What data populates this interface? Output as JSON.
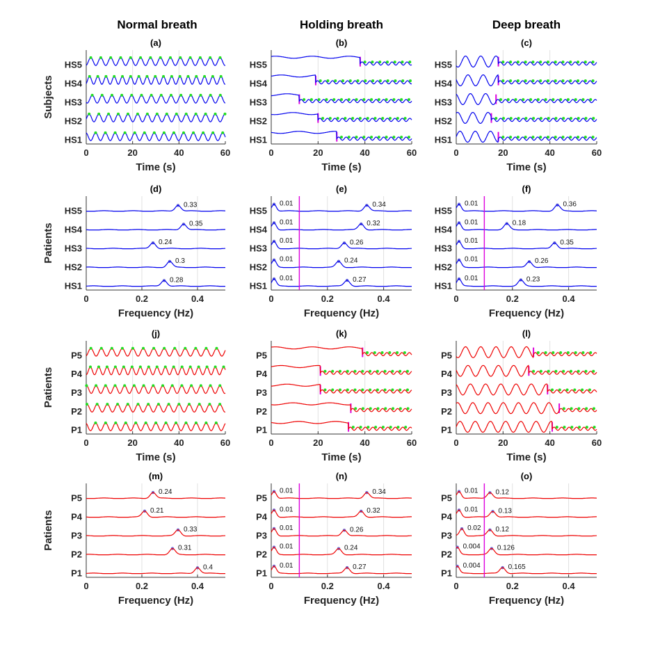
{
  "column_titles": [
    "Normal breath",
    "Holding breath",
    "Deep breath"
  ],
  "chart_data": [
    {
      "id": "a",
      "type": "line",
      "label": "(a)",
      "ylabel": "Subjects",
      "xlabel": "Time (s)",
      "xlim": [
        0,
        60
      ],
      "xticks": [
        0,
        20,
        40,
        60
      ],
      "rows": [
        "HS1",
        "HS2",
        "HS3",
        "HS4",
        "HS5"
      ],
      "color": "#0000ee",
      "grid": true,
      "condition": "normal"
    },
    {
      "id": "b",
      "type": "line",
      "label": "(b)",
      "ylabel": "",
      "xlabel": "Time (s)",
      "xlim": [
        0,
        60
      ],
      "xticks": [
        0,
        20,
        40,
        60
      ],
      "rows": [
        "HS1",
        "HS2",
        "HS3",
        "HS4",
        "HS5"
      ],
      "color": "#0000ee",
      "grid": true,
      "condition": "holding",
      "onsets": [
        28,
        20,
        12,
        19,
        38
      ]
    },
    {
      "id": "c",
      "type": "line",
      "label": "(c)",
      "ylabel": "",
      "xlabel": "Time (s)",
      "xlim": [
        0,
        60
      ],
      "xticks": [
        0,
        20,
        40,
        60
      ],
      "rows": [
        "HS1",
        "HS2",
        "HS3",
        "HS4",
        "HS5"
      ],
      "color": "#0000ee",
      "grid": true,
      "condition": "deep",
      "onsets": [
        18,
        15,
        17,
        18,
        18
      ]
    },
    {
      "id": "d",
      "type": "line",
      "label": "(d)",
      "ylabel": "Patients",
      "xlabel": "Frequency (Hz)",
      "xlim": [
        0,
        0.5
      ],
      "xticks": [
        0,
        0.2,
        0.4
      ],
      "rows": [
        "HS1",
        "HS2",
        "HS3",
        "HS4",
        "HS5"
      ],
      "color": "#0000ee",
      "grid": true,
      "condition": "spectrum",
      "peaks": [
        [
          0.28
        ],
        [
          0.3
        ],
        [
          0.24
        ],
        [
          0.35
        ],
        [
          0.33
        ]
      ],
      "peak_labels": [
        [
          "0.28"
        ],
        [
          "0.3"
        ],
        [
          "0.24"
        ],
        [
          "0.35"
        ],
        [
          "0.33"
        ]
      ]
    },
    {
      "id": "e",
      "type": "line",
      "label": "(e)",
      "ylabel": "",
      "xlabel": "Frequency (Hz)",
      "xlim": [
        0,
        0.5
      ],
      "xticks": [
        0,
        0.2,
        0.4
      ],
      "rows": [
        "HS1",
        "HS2",
        "HS3",
        "HS4",
        "HS5"
      ],
      "color": "#0000ee",
      "grid": true,
      "condition": "spectrum",
      "vline": 0.1,
      "peaks": [
        [
          0.01,
          0.27
        ],
        [
          0.01,
          0.24
        ],
        [
          0.01,
          0.26
        ],
        [
          0.01,
          0.32
        ],
        [
          0.01,
          0.34
        ]
      ],
      "peak_labels": [
        [
          "0.01",
          "0.27"
        ],
        [
          "0.01",
          "0.24"
        ],
        [
          "0.01",
          "0.26"
        ],
        [
          "0.01",
          "0.32"
        ],
        [
          "0.01",
          "0.34"
        ]
      ]
    },
    {
      "id": "f",
      "type": "line",
      "label": "(f)",
      "ylabel": "",
      "xlabel": "Frequency (Hz)",
      "xlim": [
        0,
        0.5
      ],
      "xticks": [
        0,
        0.2,
        0.4
      ],
      "rows": [
        "HS1",
        "HS2",
        "HS3",
        "HS4",
        "HS5"
      ],
      "color": "#0000ee",
      "grid": true,
      "condition": "spectrum",
      "vline": 0.1,
      "peaks": [
        [
          0.01,
          0.23
        ],
        [
          0.01,
          0.26
        ],
        [
          0.01,
          0.35
        ],
        [
          0.01,
          0.18
        ],
        [
          0.01,
          0.36
        ]
      ],
      "peak_labels": [
        [
          "0.01",
          "0.23"
        ],
        [
          "0.01",
          "0.26"
        ],
        [
          "0.01",
          "0.35"
        ],
        [
          "0.01",
          "0.18"
        ],
        [
          "0.01",
          "0.36"
        ]
      ]
    },
    {
      "id": "j",
      "type": "line",
      "label": "(j)",
      "ylabel": "Patients",
      "xlabel": "Time (s)",
      "xlim": [
        0,
        60
      ],
      "xticks": [
        0,
        20,
        40,
        60
      ],
      "rows": [
        "P1",
        "P2",
        "P3",
        "P4",
        "P5"
      ],
      "color": "#ee0000",
      "grid": true,
      "condition": "normal"
    },
    {
      "id": "k",
      "type": "line",
      "label": "(k)",
      "ylabel": "",
      "xlabel": "Time (s)",
      "xlim": [
        0,
        60
      ],
      "xticks": [
        0,
        20,
        40,
        60
      ],
      "rows": [
        "P1",
        "P2",
        "P3",
        "P4",
        "P5"
      ],
      "color": "#ee0000",
      "grid": true,
      "condition": "holding",
      "onsets": [
        33,
        34,
        21,
        21,
        39
      ]
    },
    {
      "id": "l",
      "type": "line",
      "label": "(l)",
      "ylabel": "",
      "xlabel": "Time (s)",
      "xlim": [
        0,
        60
      ],
      "xticks": [
        0,
        20,
        40,
        60
      ],
      "rows": [
        "P1",
        "P2",
        "P3",
        "P4",
        "P5"
      ],
      "color": "#ee0000",
      "grid": true,
      "condition": "deep",
      "onsets": [
        41,
        44,
        39,
        31,
        33
      ]
    },
    {
      "id": "m",
      "type": "line",
      "label": "(m)",
      "ylabel": "Patients",
      "xlabel": "Frequency (Hz)",
      "xlim": [
        0,
        0.5
      ],
      "xticks": [
        0,
        0.2,
        0.4
      ],
      "rows": [
        "P1",
        "P2",
        "P3",
        "P4",
        "P5"
      ],
      "color": "#ee0000",
      "grid": true,
      "condition": "spectrum",
      "peaks": [
        [
          0.4
        ],
        [
          0.31
        ],
        [
          0.33
        ],
        [
          0.21
        ],
        [
          0.24
        ]
      ],
      "peak_labels": [
        [
          "0.4"
        ],
        [
          "0.31"
        ],
        [
          "0.33"
        ],
        [
          "0.21"
        ],
        [
          "0.24"
        ]
      ]
    },
    {
      "id": "n",
      "type": "line",
      "label": "(n)",
      "ylabel": "",
      "xlabel": "Frequency (Hz)",
      "xlim": [
        0,
        0.5
      ],
      "xticks": [
        0,
        0.2,
        0.4
      ],
      "rows": [
        "P1",
        "P2",
        "P3",
        "P4",
        "P5"
      ],
      "color": "#ee0000",
      "grid": true,
      "condition": "spectrum",
      "vline": 0.1,
      "peaks": [
        [
          0.01,
          0.27
        ],
        [
          0.01,
          0.24
        ],
        [
          0.01,
          0.26
        ],
        [
          0.01,
          0.32
        ],
        [
          0.01,
          0.34
        ]
      ],
      "peak_labels": [
        [
          "0.01",
          "0.27"
        ],
        [
          "0.01",
          "0.24"
        ],
        [
          "0.01",
          "0.26"
        ],
        [
          "0.01",
          "0.32"
        ],
        [
          "0.01",
          "0.34"
        ]
      ]
    },
    {
      "id": "o",
      "type": "line",
      "label": "(o)",
      "ylabel": "",
      "xlabel": "Frequency (Hz)",
      "xlim": [
        0,
        0.5
      ],
      "xticks": [
        0,
        0.2,
        0.4
      ],
      "rows": [
        "P1",
        "P2",
        "P3",
        "P4",
        "P5"
      ],
      "color": "#ee0000",
      "grid": true,
      "condition": "spectrum",
      "vline": 0.1,
      "peaks": [
        [
          0.004,
          0.165
        ],
        [
          0.004,
          0.126
        ],
        [
          0.02,
          0.12
        ],
        [
          0.01,
          0.13
        ],
        [
          0.01,
          0.12
        ]
      ],
      "peak_labels": [
        [
          "0.004",
          "0.165"
        ],
        [
          "0.004",
          "0.126"
        ],
        [
          "0.02",
          "0.12"
        ],
        [
          "0.01",
          "0.13"
        ],
        [
          "0.01",
          "0.12"
        ]
      ]
    }
  ]
}
